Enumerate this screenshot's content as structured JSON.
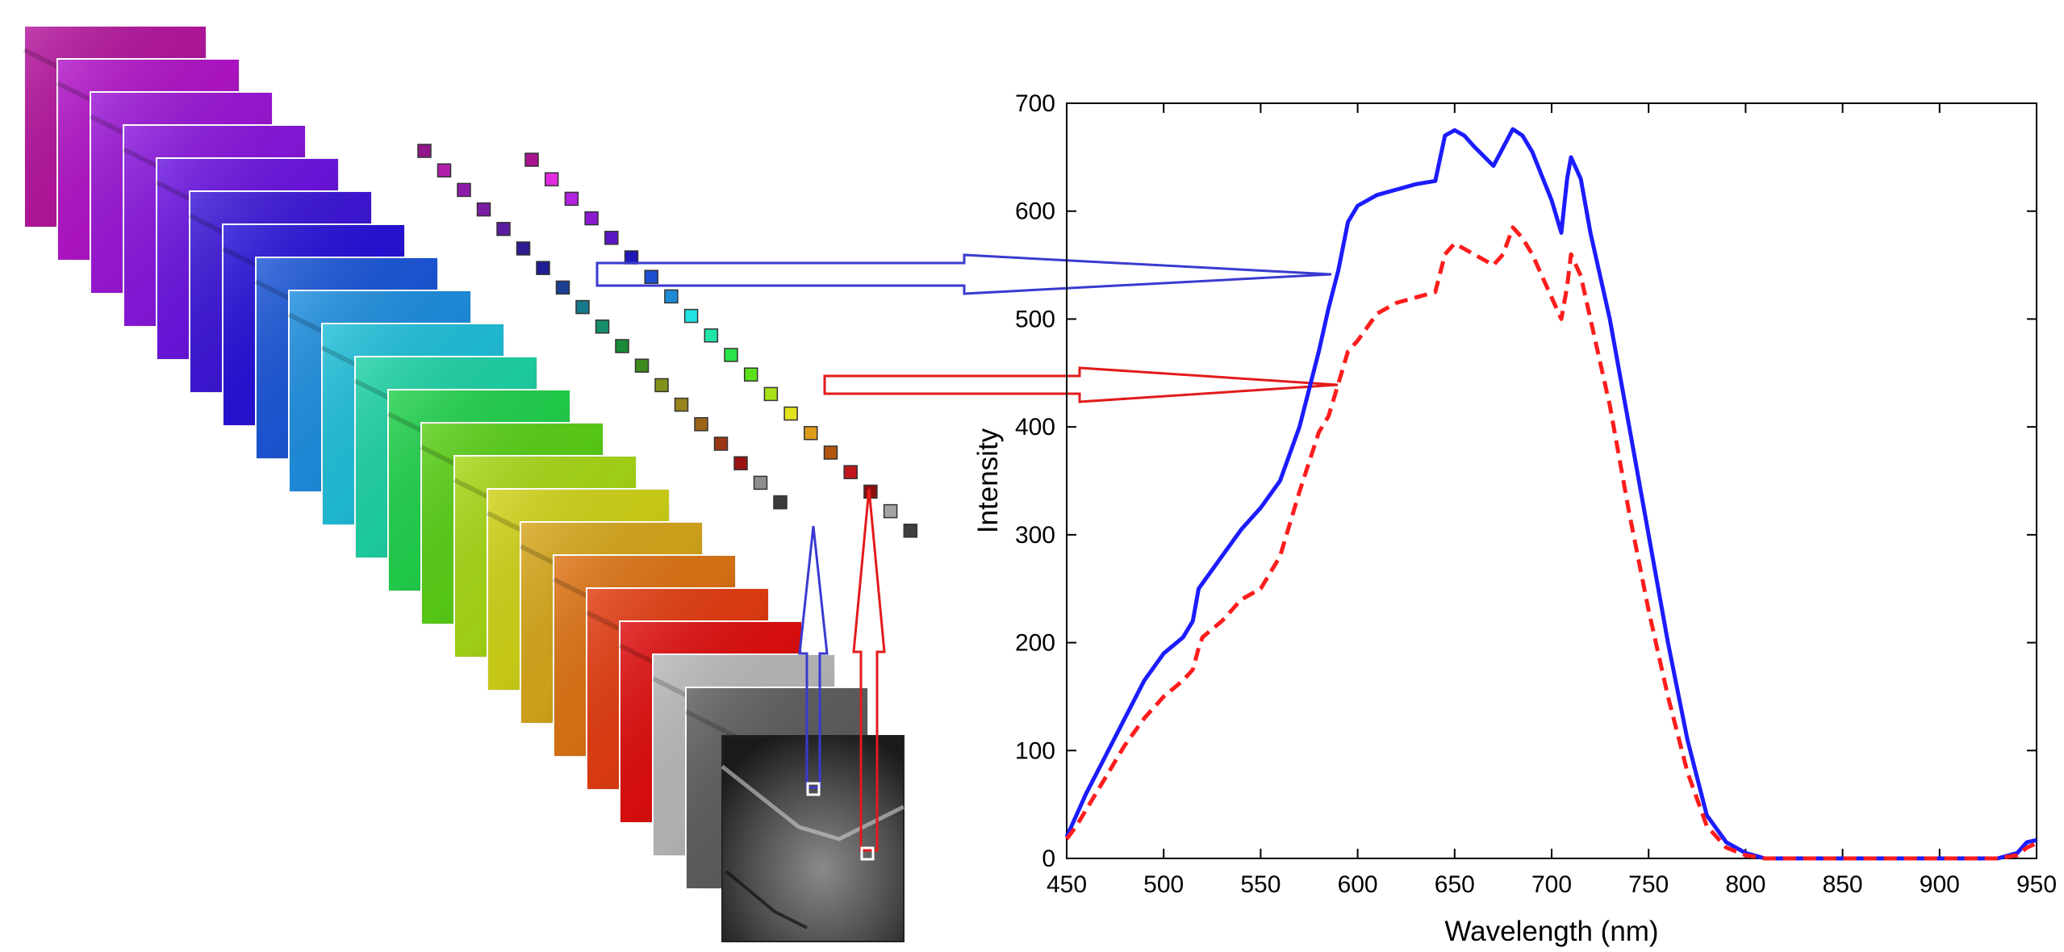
{
  "layers": {
    "colors": [
      "#b5179e",
      "#b215c8",
      "#9c17d6",
      "#8a17dd",
      "#6c15e0",
      "#3e17d8",
      "#2712d8",
      "#1c57d8",
      "#1f8fe0",
      "#21c0da",
      "#1fd3a7",
      "#22d24d",
      "#5ad017",
      "#a7d816",
      "#d0d218",
      "#d7a71b",
      "#de7414",
      "#e33d11",
      "#e00e0e",
      "#b9b9b9",
      "#5f5f5f"
    ]
  },
  "swatches": {
    "diagonal_a": [
      "#93178b",
      "#b01eab",
      "#8e1cab",
      "#7a1ea3",
      "#5a1c9f",
      "#2d1b8f",
      "#1f1d96",
      "#1a3f93",
      "#177a8c",
      "#168f6c",
      "#188b37",
      "#3e8b1d",
      "#82911b",
      "#9a8420",
      "#9b6418",
      "#9b3814",
      "#9a1212",
      "#8f8f8f",
      "#3b3b3b"
    ],
    "diagonal_b": [
      "#a8148f",
      "#e22be0",
      "#b023e0",
      "#8a19d0",
      "#5b17c5",
      "#1f17b8",
      "#1d4fd2",
      "#1c8ad6",
      "#1fe2e2",
      "#1fe4a8",
      "#28e24a",
      "#5be21b",
      "#a9e118",
      "#e3e31e",
      "#dc9b1b",
      "#b3560f",
      "#c0171a",
      "#8d1111",
      "#a3a3a3",
      "#3f3f3f"
    ]
  },
  "arrows": {
    "blue_color": "#3a3ad0",
    "red_color": "#e31a1a"
  },
  "chart_data": {
    "type": "line",
    "xlabel": "Wavelength (nm)",
    "ylabel": "Intensity",
    "xlim": [
      450,
      950
    ],
    "ylim": [
      0,
      700
    ],
    "xticks": [
      "450",
      "500",
      "550",
      "600",
      "650",
      "700",
      "750",
      "800",
      "850",
      "900",
      "950"
    ],
    "yticks": [
      "0",
      "100",
      "200",
      "300",
      "400",
      "500",
      "600",
      "700"
    ],
    "grid": false,
    "series": [
      {
        "color": "#1c1cff",
        "style": "solid",
        "x": [
          450,
          455,
          460,
          470,
          480,
          490,
          500,
          510,
          515,
          518,
          520,
          530,
          540,
          550,
          560,
          570,
          580,
          585,
          590,
          595,
          600,
          610,
          620,
          630,
          640,
          645,
          650,
          655,
          660,
          670,
          680,
          685,
          690,
          700,
          705,
          708,
          710,
          715,
          720,
          725,
          730,
          740,
          750,
          760,
          770,
          780,
          790,
          800,
          810,
          820,
          830,
          850,
          900,
          930,
          940,
          945,
          950
        ],
        "y": [
          20,
          40,
          60,
          95,
          130,
          165,
          190,
          205,
          220,
          250,
          255,
          280,
          305,
          325,
          350,
          400,
          470,
          510,
          545,
          590,
          605,
          615,
          620,
          625,
          628,
          670,
          675,
          670,
          660,
          642,
          676,
          670,
          655,
          610,
          580,
          630,
          650,
          630,
          580,
          540,
          500,
          400,
          300,
          200,
          110,
          40,
          15,
          5,
          0,
          0,
          0,
          0,
          0,
          0,
          5,
          15,
          17
        ]
      },
      {
        "color": "#ff1c1c",
        "style": "dashed",
        "x": [
          450,
          455,
          460,
          470,
          480,
          490,
          500,
          510,
          515,
          518,
          520,
          530,
          540,
          550,
          560,
          570,
          580,
          585,
          590,
          595,
          600,
          610,
          620,
          630,
          640,
          645,
          650,
          655,
          660,
          670,
          675,
          680,
          685,
          690,
          700,
          705,
          708,
          710,
          715,
          720,
          725,
          730,
          740,
          750,
          760,
          770,
          780,
          790,
          800,
          810,
          820,
          830,
          850,
          900,
          930,
          940,
          945,
          950
        ],
        "y": [
          18,
          30,
          45,
          75,
          105,
          130,
          150,
          165,
          175,
          195,
          205,
          220,
          240,
          250,
          280,
          340,
          395,
          410,
          440,
          470,
          480,
          505,
          515,
          520,
          525,
          560,
          570,
          565,
          560,
          550,
          560,
          585,
          575,
          560,
          520,
          500,
          530,
          560,
          540,
          500,
          460,
          420,
          320,
          230,
          150,
          80,
          30,
          10,
          3,
          0,
          0,
          0,
          0,
          0,
          0,
          3,
          10,
          14
        ]
      }
    ]
  }
}
